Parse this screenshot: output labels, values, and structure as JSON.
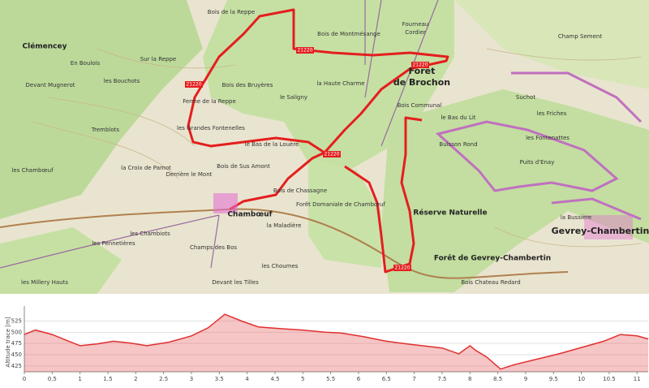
{
  "map": {
    "labels": [
      "Clémencey",
      "Bois de la Reppe",
      "Bois de Montmésange",
      "Fourneau",
      "Cordier",
      "Champ Sement",
      "Sur la Reppe",
      "En Boulois",
      "Devant Mugnerot",
      "les Bouchots",
      "Ferme de la Reppe",
      "Bois des Bruyères",
      "la Haute Charme",
      "Forêt",
      "de Brochon",
      "Bois Communal",
      "Suchot",
      "les Friches",
      "les Grandes Fontenelles",
      "le Bas de la Louère",
      "le Bas du Lit",
      "Buisson Rond",
      "les Fontenattes",
      "la Croix de Pamot",
      "Derrière le Mont",
      "Bois de Sus Amont",
      "Puits d'Enay",
      "Bois de Chassagne",
      "Forêt Domaniale de Chambœuf",
      "Réserve Naturelle",
      "Chambœuf",
      "la Maladière",
      "les Chambiots",
      "Gevrey-Chambertin",
      "les Pennetières",
      "Champs des Bos",
      "les Choumes",
      "Forêt de Gevrey-Chambertin",
      "Devant les Tilles",
      "les Millery Hauts",
      "les Chambœuf",
      "Tremblots",
      "Bois Chateau Redard",
      "le Saligny",
      "la Bussière"
    ],
    "route_markers": [
      "21220",
      "21220",
      "21220",
      "21220",
      "21220"
    ]
  },
  "chart_data": {
    "type": "area",
    "ylabel": "Altitude trace [m]",
    "color": "#e03030",
    "x": [
      0,
      0.2,
      0.5,
      0.8,
      1.0,
      1.3,
      1.6,
      1.9,
      2.2,
      2.6,
      3.0,
      3.3,
      3.6,
      3.9,
      4.2,
      4.6,
      5.0,
      5.4,
      5.7,
      6.1,
      6.5,
      7.0,
      7.5,
      7.8,
      8.0,
      8.1,
      8.3,
      8.55,
      8.8,
      9.2,
      9.6,
      10.0,
      10.4,
      10.7,
      11.0,
      11.2
    ],
    "values": [
      495,
      505,
      495,
      480,
      470,
      474,
      480,
      476,
      470,
      478,
      492,
      510,
      540,
      525,
      512,
      508,
      505,
      500,
      498,
      490,
      480,
      472,
      465,
      452,
      470,
      460,
      445,
      418,
      428,
      440,
      452,
      466,
      480,
      495,
      492,
      485
    ],
    "xlim": [
      0,
      11.2
    ],
    "ylim": [
      412,
      544
    ],
    "xticks": [
      0,
      0.5,
      1,
      1.5,
      2,
      2.5,
      3,
      3.5,
      4,
      4.5,
      5,
      5.5,
      6,
      6.5,
      7,
      7.5,
      8,
      8.5,
      9,
      9.5,
      10,
      10.5,
      11
    ],
    "yticks": [
      425,
      450,
      475,
      500,
      525
    ],
    "grid": true
  }
}
